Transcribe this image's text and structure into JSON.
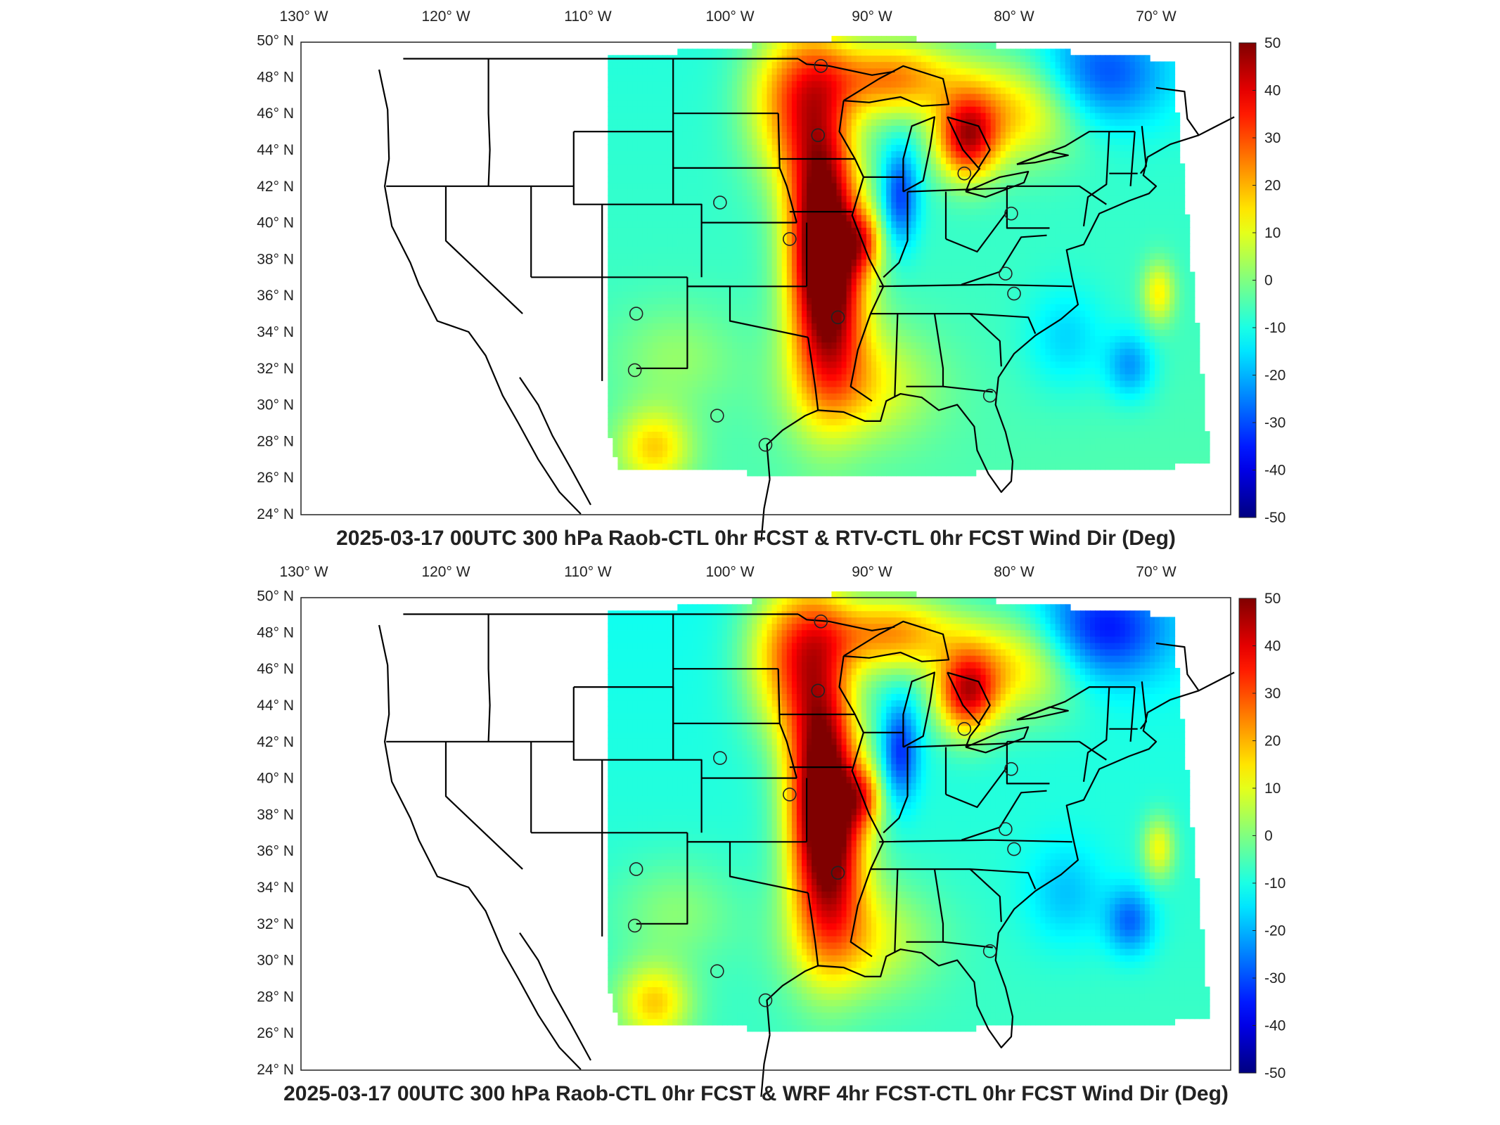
{
  "panels": [
    {
      "title": "2025-03-17 00UTC 300 hPa Raob-CTL 0hr FCST & RTV-CTL 0hr FCST Wind Dir (Deg)",
      "variant": "rtv"
    },
    {
      "title": "2025-03-17 00UTC 300 hPa Raob-CTL 0hr FCST & WRF 4hr FCST-CTL 0hr FCST Wind Dir (Deg)",
      "variant": "wrf"
    }
  ],
  "axes": {
    "lon_ticks": [
      {
        "deg": "130",
        "hemi": "W"
      },
      {
        "deg": "120",
        "hemi": "W"
      },
      {
        "deg": "110",
        "hemi": "W"
      },
      {
        "deg": "100",
        "hemi": "W"
      },
      {
        "deg": "90",
        "hemi": "W"
      },
      {
        "deg": "80",
        "hemi": "W"
      },
      {
        "deg": "70",
        "hemi": "W"
      }
    ],
    "lat_ticks": [
      {
        "deg": "50",
        "hemi": "N"
      },
      {
        "deg": "48",
        "hemi": "N"
      },
      {
        "deg": "46",
        "hemi": "N"
      },
      {
        "deg": "44",
        "hemi": "N"
      },
      {
        "deg": "42",
        "hemi": "N"
      },
      {
        "deg": "40",
        "hemi": "N"
      },
      {
        "deg": "38",
        "hemi": "N"
      },
      {
        "deg": "36",
        "hemi": "N"
      },
      {
        "deg": "34",
        "hemi": "N"
      },
      {
        "deg": "32",
        "hemi": "N"
      },
      {
        "deg": "30",
        "hemi": "N"
      },
      {
        "deg": "28",
        "hemi": "N"
      },
      {
        "deg": "26",
        "hemi": "N"
      },
      {
        "deg": "24",
        "hemi": "N"
      }
    ]
  },
  "colorbar": {
    "ticks": [
      "50",
      "40",
      "30",
      "20",
      "10",
      "0",
      "-10",
      "-20",
      "-30",
      "-40",
      "-50"
    ],
    "range": [
      -50,
      50
    ],
    "colormap": "jet",
    "colors": [
      "#00007f",
      "#0000ff",
      "#007fff",
      "#00ffff",
      "#7fff7f",
      "#ffff00",
      "#ff7f00",
      "#ff0000",
      "#7f0000"
    ]
  },
  "raob_stations": [
    {
      "lon": -93.6,
      "lat": 48.6
    },
    {
      "lon": -93.8,
      "lat": 44.8
    },
    {
      "lon": -83.5,
      "lat": 42.7
    },
    {
      "lon": -80.2,
      "lat": 40.5
    },
    {
      "lon": -100.7,
      "lat": 41.1
    },
    {
      "lon": -95.8,
      "lat": 39.1
    },
    {
      "lon": -80.6,
      "lat": 37.2
    },
    {
      "lon": -80.0,
      "lat": 36.1
    },
    {
      "lon": -92.4,
      "lat": 34.8
    },
    {
      "lon": -106.6,
      "lat": 35.0
    },
    {
      "lon": -106.7,
      "lat": 31.9
    },
    {
      "lon": -100.9,
      "lat": 29.4
    },
    {
      "lon": -97.5,
      "lat": 27.8
    },
    {
      "lon": -81.7,
      "lat": 30.5
    }
  ]
}
